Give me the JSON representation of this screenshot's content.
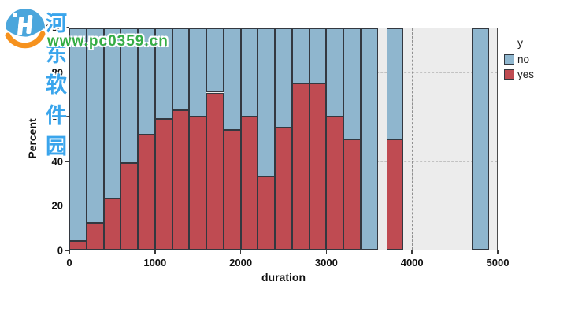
{
  "watermark": {
    "site_name": "河东软件园",
    "site_url": "www.pc0359.cn",
    "name_color": "#3AA5EC",
    "url_color": "#34AD44",
    "logo": "globe-swoosh-logo",
    "logo_blue": "#4BA6DC",
    "logo_orange": "#F6921E"
  },
  "chart_data": {
    "type": "bar",
    "subtype": "100-percent-stacked-histogram",
    "title": "",
    "xlabel": "duration",
    "ylabel": "Percent",
    "xlim": [
      0,
      5000
    ],
    "ylim": [
      0,
      100
    ],
    "x_ticks": [
      0,
      1000,
      2000,
      3000,
      4000,
      5000
    ],
    "y_ticks": [
      0,
      20,
      40,
      60,
      80,
      100
    ],
    "grid": "dashed horizontal lines at y ticks, plot background gray",
    "reference_line_x": 4000,
    "bin_width": 200,
    "legend": {
      "title": "y",
      "position": "top-right",
      "entries": [
        {
          "label": "no",
          "color": "#8FB6CE"
        },
        {
          "label": "yes",
          "color": "#BF4B52"
        }
      ]
    },
    "bins": [
      {
        "from": 0,
        "to": 200,
        "yes": 4,
        "no": 96
      },
      {
        "from": 200,
        "to": 400,
        "yes": 12,
        "no": 88
      },
      {
        "from": 400,
        "to": 600,
        "yes": 23,
        "no": 77
      },
      {
        "from": 600,
        "to": 800,
        "yes": 39,
        "no": 61
      },
      {
        "from": 800,
        "to": 1000,
        "yes": 52,
        "no": 48
      },
      {
        "from": 1000,
        "to": 1200,
        "yes": 59,
        "no": 41
      },
      {
        "from": 1200,
        "to": 1400,
        "yes": 63,
        "no": 37
      },
      {
        "from": 1400,
        "to": 1600,
        "yes": 60,
        "no": 40
      },
      {
        "from": 1600,
        "to": 1800,
        "yes": 71,
        "no": 29
      },
      {
        "from": 1800,
        "to": 2000,
        "yes": 54,
        "no": 46
      },
      {
        "from": 2000,
        "to": 2200,
        "yes": 60,
        "no": 40
      },
      {
        "from": 2200,
        "to": 2400,
        "yes": 33,
        "no": 67
      },
      {
        "from": 2400,
        "to": 2600,
        "yes": 55,
        "no": 45
      },
      {
        "from": 2600,
        "to": 2800,
        "yes": 75,
        "no": 25
      },
      {
        "from": 2800,
        "to": 3000,
        "yes": 75,
        "no": 25
      },
      {
        "from": 3000,
        "to": 3200,
        "yes": 60,
        "no": 40
      },
      {
        "from": 3200,
        "to": 3400,
        "yes": 50,
        "no": 50
      },
      {
        "from": 3400,
        "to": 3600,
        "yes": 0,
        "no": 100
      },
      {
        "from": 3700,
        "to": 3900,
        "yes": 50,
        "no": 50
      },
      {
        "from": 4700,
        "to": 4900,
        "yes": 0,
        "no": 100
      }
    ]
  }
}
